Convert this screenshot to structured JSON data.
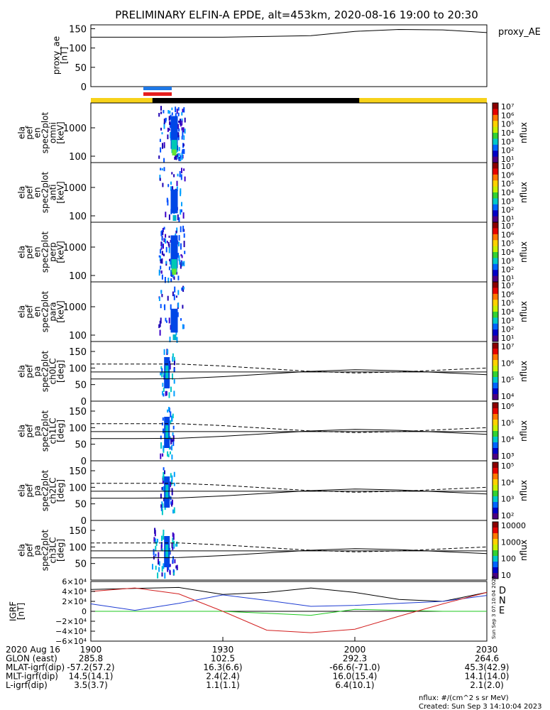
{
  "title": "PRELIMINARY ELFIN-A EPDE, alt=453km, 2020-08-16 19:00 to 20:30",
  "colors": {
    "science_bar_yellow": "#f7d21a",
    "science_bar_black": "#000000",
    "marker_blue": "#1e78e6",
    "marker_red": "#e61e1e",
    "grf_d": "#000000",
    "grf_n": "#1e3cd2",
    "grf_e": "#1ec81e",
    "grf_red": "#d21e1e"
  },
  "ae_panel": {
    "ylabel_lines": [
      "proxy_ae",
      "[nT]"
    ],
    "legend": "proxy_AE",
    "ticks": [
      "150",
      "100",
      "50",
      "0"
    ]
  },
  "energy_panels": [
    {
      "ylabel_lines": [
        "ela",
        "pef",
        "en",
        "spec2plot",
        "omni",
        "[keV]"
      ],
      "ticks": [
        "1000",
        "100"
      ],
      "cb_ticks": [
        "10⁷",
        "10⁶",
        "10⁵",
        "10⁴",
        "10³",
        "10²",
        "10¹"
      ],
      "cb_label": "nflux"
    },
    {
      "ylabel_lines": [
        "ela",
        "pef",
        "en",
        "spec2plot",
        "anti",
        "[keV]"
      ],
      "ticks": [
        "1000",
        "100"
      ],
      "cb_ticks": [
        "10⁷",
        "10⁶",
        "10⁵",
        "10⁴",
        "10³",
        "10²",
        "10¹"
      ],
      "cb_label": "nflux"
    },
    {
      "ylabel_lines": [
        "ela",
        "pef",
        "en",
        "spec2plot",
        "perp",
        "[keV]"
      ],
      "ticks": [
        "1000",
        "100"
      ],
      "cb_ticks": [
        "10⁷",
        "10⁶",
        "10⁵",
        "10⁴",
        "10³",
        "10²",
        "10¹"
      ],
      "cb_label": "nflux"
    },
    {
      "ylabel_lines": [
        "ela",
        "pef",
        "en",
        "spec2plot",
        "para",
        "[keV]"
      ],
      "ticks": [
        "1000",
        "100"
      ],
      "cb_ticks": [
        "10⁷",
        "10⁶",
        "10⁵",
        "10⁴",
        "10³",
        "10²",
        "10¹"
      ],
      "cb_label": "nflux"
    }
  ],
  "pitch_panels": [
    {
      "ylabel_lines": [
        "ela",
        "pef",
        "pa",
        "spec2plot",
        "ch0LC",
        "[deg]"
      ],
      "ticks": [
        "150",
        "100",
        "50",
        "0"
      ],
      "cb_ticks": [
        "10⁷",
        "10⁶",
        "10⁵",
        "10⁴"
      ],
      "cb_label": "nflux"
    },
    {
      "ylabel_lines": [
        "ela",
        "pef",
        "pa",
        "spec2plot",
        "ch1LC",
        "[deg]"
      ],
      "ticks": [
        "150",
        "100",
        "50",
        "0"
      ],
      "cb_ticks": [
        "10⁶",
        "10⁵",
        "10⁴",
        "10³"
      ],
      "cb_label": "nflux"
    },
    {
      "ylabel_lines": [
        "ela",
        "pef",
        "pa",
        "spec2plot",
        "ch2LC",
        "[deg]"
      ],
      "ticks": [
        "150",
        "100",
        "50",
        "0"
      ],
      "cb_ticks": [
        "10⁵",
        "10⁴",
        "10³",
        "10²"
      ],
      "cb_label": "nflux"
    },
    {
      "ylabel_lines": [
        "ela",
        "pef",
        "pa",
        "spec2plot",
        "ch3LC",
        "[deg]"
      ],
      "ticks": [
        "150",
        "100",
        "50"
      ],
      "cb_ticks": [
        "10000",
        "1000",
        "100",
        "10"
      ],
      "cb_label": "nflux"
    }
  ],
  "grf_panel": {
    "ylabel_lines": [
      "IGRF",
      "[nT]"
    ],
    "ticks": [
      "6×10⁴",
      "4×10⁴",
      "2×10⁴",
      "0",
      "−2×10⁴",
      "−4×10⁴",
      "−6×10⁴"
    ],
    "legend": [
      "D",
      "N",
      "E"
    ],
    "side_note": "Sun Sep  3 07:10:04 2023"
  },
  "footer": {
    "rows": [
      {
        "label": "2020 Aug 16",
        "values": [
          "1900",
          "1930",
          "2000",
          "2030"
        ]
      },
      {
        "label": "GLON (east)",
        "values": [
          "285.8",
          "102.5",
          "292.3",
          "264.6"
        ]
      },
      {
        "label": "MLAT-igrf(dip)",
        "values": [
          "-57.2(57.2)",
          "16.3(6.6)",
          "-66.6(-71.0)",
          "45.3(42.9)"
        ]
      },
      {
        "label": "MLT-igrf(dip)",
        "values": [
          "14.5(14.1)",
          "2.4(2.4)",
          "16.0(15.4)",
          "14.1(14.0)"
        ]
      },
      {
        "label": "L-igrf(dip)",
        "values": [
          "3.5(3.7)",
          "1.1(1.1)",
          "6.4(10.1)",
          "2.1(2.0)"
        ]
      }
    ],
    "units_note": "nflux: #/(cm^2 s sr MeV)",
    "created": "Created: Sun Sep  3 14:10:04 2023"
  },
  "chart_data": [
    {
      "type": "line",
      "name": "proxy_AE",
      "x": [
        "19:00",
        "19:30",
        "19:50",
        "20:00",
        "20:10",
        "20:20",
        "20:30"
      ],
      "y": [
        128,
        128,
        132,
        143,
        148,
        147,
        140
      ],
      "ylim": [
        0,
        160
      ]
    },
    {
      "type": "heatmap",
      "panels": [
        "omni",
        "anti",
        "perp",
        "para"
      ],
      "x_range": [
        "19:00",
        "20:30"
      ],
      "yscale": "log",
      "ylim": [
        55,
        6500
      ],
      "colorbar": {
        "scale": "log",
        "range": [
          10,
          10000000
        ]
      },
      "burst_x": [
        "19:16",
        "19:19"
      ]
    },
    {
      "type": "line",
      "name": "pitch-angle loss cone",
      "x": [
        "19:00",
        "19:10",
        "19:20",
        "19:30",
        "19:40",
        "19:50",
        "20:00",
        "20:10",
        "20:20",
        "20:30"
      ],
      "loss_cone_solid": [
        67,
        67,
        68,
        74,
        82,
        90,
        95,
        92,
        86,
        80
      ],
      "anti_loss_cone_solid": [
        88,
        88,
        88,
        88,
        88,
        88,
        88,
        88,
        88,
        88
      ],
      "dashed": [
        112,
        112,
        112,
        106,
        98,
        90,
        85,
        88,
        94,
        100
      ],
      "ylim": [
        0,
        180
      ]
    },
    {
      "type": "line",
      "name": "IGRF",
      "x": [
        "19:00",
        "19:10",
        "19:20",
        "19:30",
        "19:40",
        "19:50",
        "20:00",
        "20:10",
        "20:20",
        "20:30"
      ],
      "series": [
        {
          "name": "D",
          "values": [
            44000,
            46000,
            48000,
            34000,
            38000,
            47000,
            38000,
            24000,
            20000,
            38000
          ]
        },
        {
          "name": "N",
          "values": [
            15000,
            2000,
            16000,
            33000,
            22000,
            10000,
            12000,
            16000,
            20000,
            32000
          ]
        },
        {
          "name": "E",
          "values": [
            0,
            0,
            0,
            0,
            -4000,
            -8000,
            4000,
            2000,
            0,
            0
          ]
        },
        {
          "name": "red",
          "values": [
            40000,
            47000,
            35000,
            0,
            -38000,
            -43000,
            -36000,
            -10000,
            15000,
            38000
          ]
        }
      ],
      "ylim": [
        -60000,
        60000
      ]
    }
  ]
}
